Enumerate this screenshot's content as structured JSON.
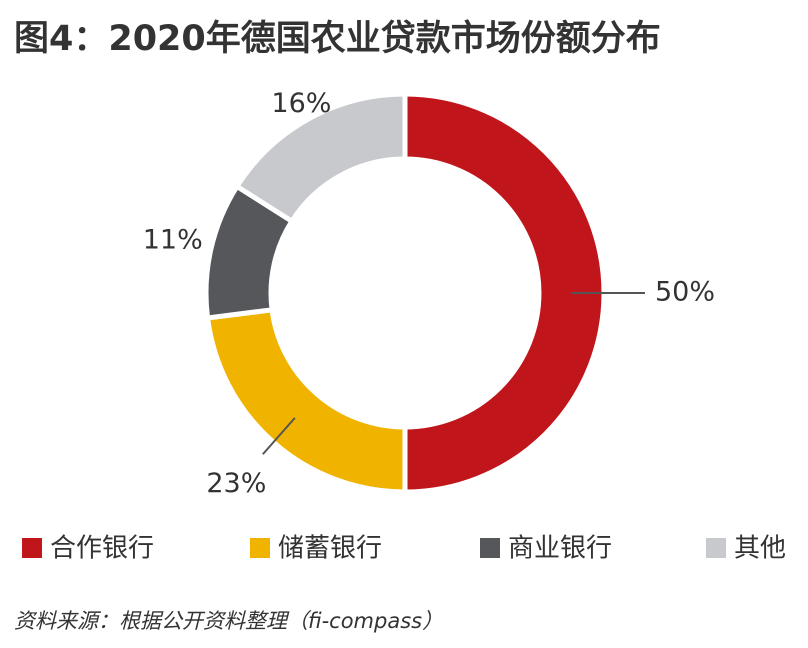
{
  "chart_data": {
    "type": "donut",
    "title": "图4：2020年德国农业贷款市场份额分布",
    "categories": [
      "合作银行",
      "储蓄银行",
      "商业银行",
      "其他"
    ],
    "values": [
      50,
      23,
      11,
      16
    ],
    "value_labels": [
      "50%",
      "23%",
      "11%",
      "16%"
    ],
    "colors": [
      "#c0161b",
      "#f0b400",
      "#55575b",
      "#c8c9cd"
    ],
    "legend": "bottom",
    "source": "资料来源：根据公开资料整理（fi-compass）"
  }
}
